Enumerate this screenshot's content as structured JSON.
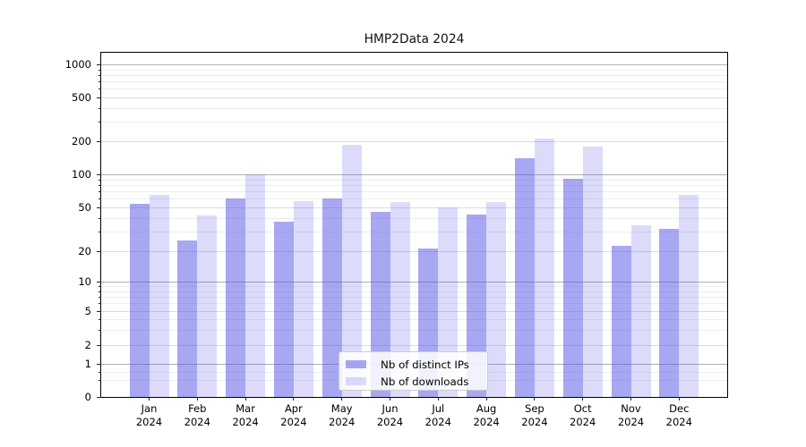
{
  "figure": {
    "title": "HMP2Data 2024"
  },
  "chart_data": {
    "type": "bar",
    "title": "HMP2Data 2024",
    "yscale": "symlog",
    "grid": true,
    "legend_position": "lower center",
    "ylim": [
      0,
      1400
    ],
    "yticks": [
      1000,
      500,
      200,
      100,
      50,
      20,
      10,
      5,
      2,
      1,
      0
    ],
    "categories": [
      {
        "month": "Jan",
        "year": "2024"
      },
      {
        "month": "Feb",
        "year": "2024"
      },
      {
        "month": "Mar",
        "year": "2024"
      },
      {
        "month": "Apr",
        "year": "2024"
      },
      {
        "month": "May",
        "year": "2024"
      },
      {
        "month": "Jun",
        "year": "2024"
      },
      {
        "month": "Jul",
        "year": "2024"
      },
      {
        "month": "Aug",
        "year": "2024"
      },
      {
        "month": "Sep",
        "year": "2024"
      },
      {
        "month": "Oct",
        "year": "2024"
      },
      {
        "month": "Nov",
        "year": "2024"
      },
      {
        "month": "Dec",
        "year": "2024"
      }
    ],
    "series": [
      {
        "name": "Nb of distinct IPs",
        "color": "rgba(80,80,230,0.5)",
        "values": [
          54,
          25,
          60,
          37,
          60,
          45,
          21,
          43,
          140,
          91,
          22,
          32
        ]
      },
      {
        "name": "Nb of downloads",
        "color": "rgba(80,80,230,0.2)",
        "values": [
          65,
          42,
          101,
          57,
          185,
          56,
          50,
          56,
          210,
          180,
          34,
          65
        ]
      }
    ]
  }
}
